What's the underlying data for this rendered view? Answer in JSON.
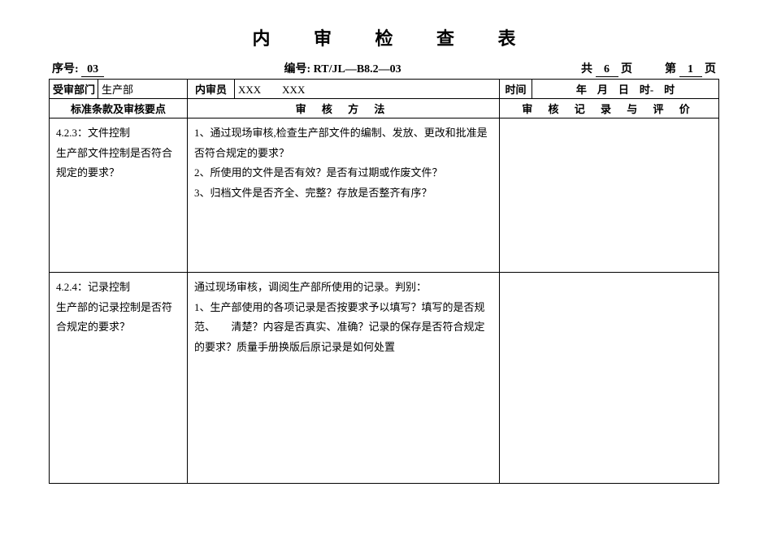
{
  "title": "内 审 检 查 表",
  "meta": {
    "seq_label": "序号:",
    "seq_value": "03",
    "code_label": "编号:",
    "code_value": "RT/JL—B8.2—03",
    "total_pages_prefix": "共",
    "total_pages_value": "6",
    "total_pages_suffix": "页",
    "cur_page_prefix": "第",
    "cur_page_value": "1",
    "cur_page_suffix": "页"
  },
  "header_row1": {
    "dept_label": "受审部门",
    "dept_value": "生产部",
    "auditor_label": "内审员",
    "auditor_value": "XXX　　XXX",
    "time_label": "时间",
    "time_value": "年　月　日　时-　时"
  },
  "header_row2": {
    "col1": "标准条款及审核要点",
    "col2": "审 核 方 法",
    "col3": "审 核 记 录 与 评 价"
  },
  "rows": [
    {
      "left": "4.2.3：文件控制\n生产部文件控制是否符合规定的要求？",
      "method": "1、通过现场审核,检查生产部文件的编制、发放、更改和批准是否符合规定的要求？\n2、所使用的文件是否有效？是否有过期或作废文件？\n3、归档文件是否齐全、完整？存放是否整齐有序？",
      "record": ""
    },
    {
      "left": "4.2.4：记录控制\n生产部的记录控制是否符合规定的要求？",
      "method": "通过现场审核，调阅生产部所使用的记录。判别：\n1、生产部使用的各项记录是否按要求予以填写？填写的是否规范、　　清楚？内容是否真实、准确？记录的保存是否符合规定的要求？质量手册换版后原记录是如何处置",
      "record": ""
    }
  ]
}
